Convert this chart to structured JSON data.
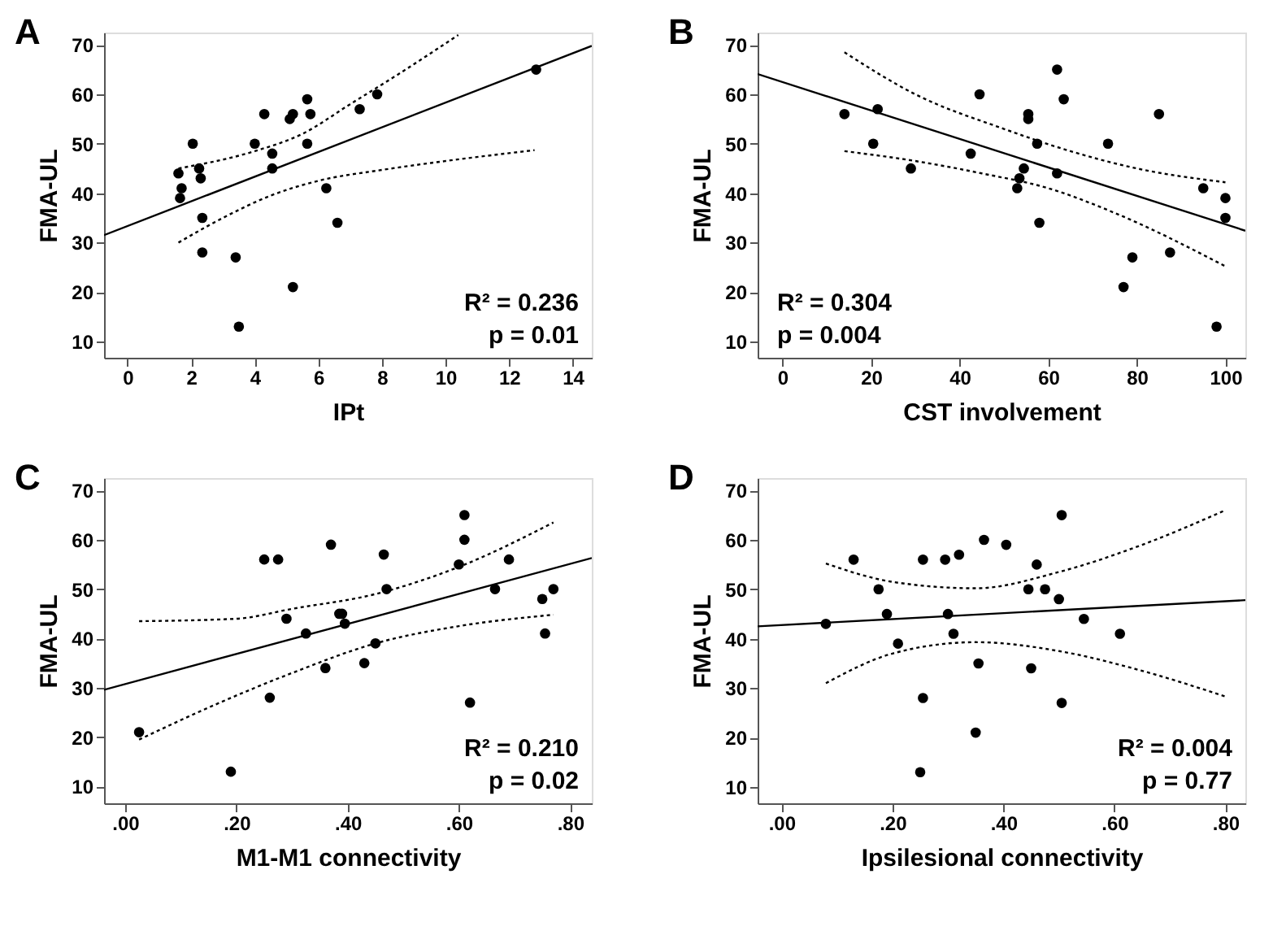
{
  "chart_data": [
    {
      "type": "scatter",
      "title": "A",
      "xlabel": "IPt",
      "ylabel": "FMA-UL",
      "xlim": [
        -0.74,
        14.6
      ],
      "ylim": [
        6.7,
        72.5
      ],
      "xticks": [
        0,
        2,
        4,
        6,
        8,
        10,
        12,
        14
      ],
      "yticks": [
        10,
        20,
        30,
        40,
        50,
        60,
        70
      ],
      "grid": false,
      "annotations": [
        "R² = 0.236",
        "p = 0.01"
      ],
      "series": [
        {
          "type": "scatter",
          "color": "#000000",
          "marker": "circle",
          "x": [
            1.6,
            1.7,
            1.65,
            2.05,
            2.25,
            2.3,
            2.35,
            2.35,
            3.4,
            3.5,
            4.0,
            4.3,
            4.55,
            4.55,
            5.1,
            5.2,
            5.2,
            5.65,
            5.65,
            5.75,
            6.25,
            6.6,
            7.3,
            7.85,
            12.85
          ],
          "values": [
            44,
            41,
            39,
            50,
            45,
            43,
            35,
            28,
            27,
            13,
            50,
            56,
            48,
            45,
            55,
            56,
            21,
            59,
            50,
            56,
            41,
            34,
            57,
            60,
            65
          ]
        },
        {
          "type": "line",
          "color": "#000000",
          "line_style": "solid",
          "x": [
            -0.74,
            14.6
          ],
          "values": [
            31.5,
            69.8
          ]
        },
        {
          "type": "line",
          "color": "#000000",
          "line_style": "dotted",
          "x": [
            1.6,
            4,
            5.5,
            7,
            8.5,
            10.4
          ],
          "values": [
            45,
            48.5,
            52,
            58,
            64,
            72
          ]
        },
        {
          "type": "line",
          "color": "#000000",
          "line_style": "dotted",
          "x": [
            1.6,
            3,
            4.5,
            6,
            8,
            10,
            12.8
          ],
          "values": [
            30,
            35,
            39.5,
            42.5,
            44.7,
            46.5,
            48.7
          ]
        }
      ]
    },
    {
      "type": "scatter",
      "title": "B",
      "xlabel": "CST involvement",
      "ylabel": "FMA-UL",
      "xlim": [
        -5.6,
        104.5
      ],
      "ylim": [
        6.7,
        72.5
      ],
      "xticks": [
        0,
        20,
        40,
        60,
        80,
        100
      ],
      "yticks": [
        10,
        20,
        30,
        40,
        50,
        60,
        70
      ],
      "grid": false,
      "annotations": [
        "R² = 0.304",
        "p = 0.004"
      ],
      "series": [
        {
          "type": "scatter",
          "color": "#000000",
          "marker": "circle",
          "x": [
            14,
            20.5,
            21.5,
            29,
            42.5,
            44.5,
            53,
            53.5,
            54.5,
            55.5,
            55.5,
            57.5,
            58,
            62,
            62,
            63.5,
            73.5,
            77,
            79,
            85,
            87.5,
            95,
            98,
            100,
            100
          ],
          "values": [
            56,
            50,
            57,
            45,
            48,
            60,
            41,
            43,
            45,
            56,
            55,
            50,
            34,
            44,
            65,
            59,
            50,
            21,
            27,
            56,
            28,
            41,
            13,
            39,
            35
          ]
        },
        {
          "type": "line",
          "color": "#000000",
          "line_style": "solid",
          "x": [
            -5.6,
            104.5
          ],
          "values": [
            64.1,
            32.4
          ]
        },
        {
          "type": "line",
          "color": "#000000",
          "line_style": "dotted",
          "x": [
            14,
            30,
            50,
            65,
            80,
            100
          ],
          "values": [
            68.5,
            60,
            53,
            48.5,
            45,
            42.2
          ]
        },
        {
          "type": "line",
          "color": "#000000",
          "line_style": "dotted",
          "x": [
            14,
            30,
            45,
            60,
            75,
            100
          ],
          "values": [
            48.5,
            46.5,
            44,
            41,
            36,
            25.2
          ]
        }
      ]
    },
    {
      "type": "scatter",
      "title": "C",
      "xlabel": "M1-M1 connectivity",
      "ylabel": "FMA-UL",
      "xlim": [
        -0.038,
        0.839
      ],
      "ylim": [
        6.6,
        72.5
      ],
      "xticks": [
        {
          "value": 0,
          "label": ".00"
        },
        {
          "value": 0.2,
          "label": ".20"
        },
        {
          "value": 0.4,
          "label": ".40"
        },
        {
          "value": 0.6,
          "label": ".60"
        },
        {
          "value": 0.8,
          "label": ".80"
        }
      ],
      "yticks": [
        10,
        20,
        30,
        40,
        50,
        60,
        70
      ],
      "grid": false,
      "annotations": [
        "R² = 0.210",
        "p = 0.02"
      ],
      "series": [
        {
          "type": "scatter",
          "color": "#000000",
          "marker": "circle",
          "x": [
            0.025,
            0.19,
            0.25,
            0.26,
            0.275,
            0.29,
            0.325,
            0.36,
            0.37,
            0.385,
            0.39,
            0.395,
            0.43,
            0.45,
            0.465,
            0.47,
            0.6,
            0.61,
            0.61,
            0.62,
            0.665,
            0.69,
            0.75,
            0.755,
            0.77
          ],
          "values": [
            21,
            13,
            56,
            28,
            56,
            44,
            41,
            34,
            59,
            45,
            45,
            43,
            35,
            39,
            57,
            50,
            55,
            65,
            60,
            27,
            50,
            56,
            48,
            41,
            50
          ]
        },
        {
          "type": "line",
          "color": "#000000",
          "line_style": "solid",
          "x": [
            -0.038,
            0.839
          ],
          "values": [
            29.6,
            56.3
          ]
        },
        {
          "type": "line",
          "color": "#000000",
          "line_style": "dotted",
          "x": [
            0.025,
            0.2,
            0.3,
            0.45,
            0.6,
            0.77
          ],
          "values": [
            43.5,
            44,
            46,
            49,
            54.5,
            63.5
          ]
        },
        {
          "type": "line",
          "color": "#000000",
          "line_style": "dotted",
          "x": [
            0.025,
            0.15,
            0.3,
            0.45,
            0.6,
            0.77
          ],
          "values": [
            19.5,
            26,
            33,
            39,
            42.5,
            44.8
          ]
        }
      ]
    },
    {
      "type": "scatter",
      "title": "D",
      "xlabel": "Ipsilesional connectivity",
      "ylabel": "FMA-UL",
      "xlim": [
        -0.043,
        0.836
      ],
      "ylim": [
        6.7,
        72.5
      ],
      "xticks": [
        {
          "value": 0,
          "label": ".00"
        },
        {
          "value": 0.2,
          "label": ".20"
        },
        {
          "value": 0.4,
          "label": ".40"
        },
        {
          "value": 0.6,
          "label": ".60"
        },
        {
          "value": 0.8,
          "label": ".80"
        }
      ],
      "yticks": [
        10,
        20,
        30,
        40,
        50,
        60,
        70
      ],
      "grid": false,
      "annotations": [
        "R² = 0.004",
        "p = 0.77"
      ],
      "series": [
        {
          "type": "scatter",
          "color": "#000000",
          "marker": "circle",
          "x": [
            0.08,
            0.13,
            0.175,
            0.19,
            0.21,
            0.25,
            0.255,
            0.255,
            0.295,
            0.3,
            0.31,
            0.32,
            0.35,
            0.355,
            0.365,
            0.405,
            0.445,
            0.45,
            0.46,
            0.475,
            0.5,
            0.505,
            0.505,
            0.545,
            0.61
          ],
          "values": [
            43,
            56,
            50,
            45,
            39,
            13,
            28,
            56,
            56,
            45,
            41,
            57,
            21,
            35,
            60,
            59,
            50,
            34,
            55,
            50,
            48,
            65,
            27,
            44,
            41
          ]
        },
        {
          "type": "line",
          "color": "#000000",
          "line_style": "solid",
          "x": [
            -0.043,
            0.836
          ],
          "values": [
            42.5,
            47.8
          ]
        },
        {
          "type": "line",
          "color": "#000000",
          "line_style": "dotted",
          "x": [
            0.08,
            0.2,
            0.35,
            0.5,
            0.65,
            0.8
          ],
          "values": [
            55.2,
            51.5,
            50.2,
            53.5,
            59,
            66
          ]
        },
        {
          "type": "line",
          "color": "#000000",
          "line_style": "dotted",
          "x": [
            0.08,
            0.2,
            0.35,
            0.5,
            0.65,
            0.8
          ],
          "values": [
            31,
            37,
            39.3,
            37.5,
            33.5,
            28.3
          ]
        }
      ]
    }
  ]
}
